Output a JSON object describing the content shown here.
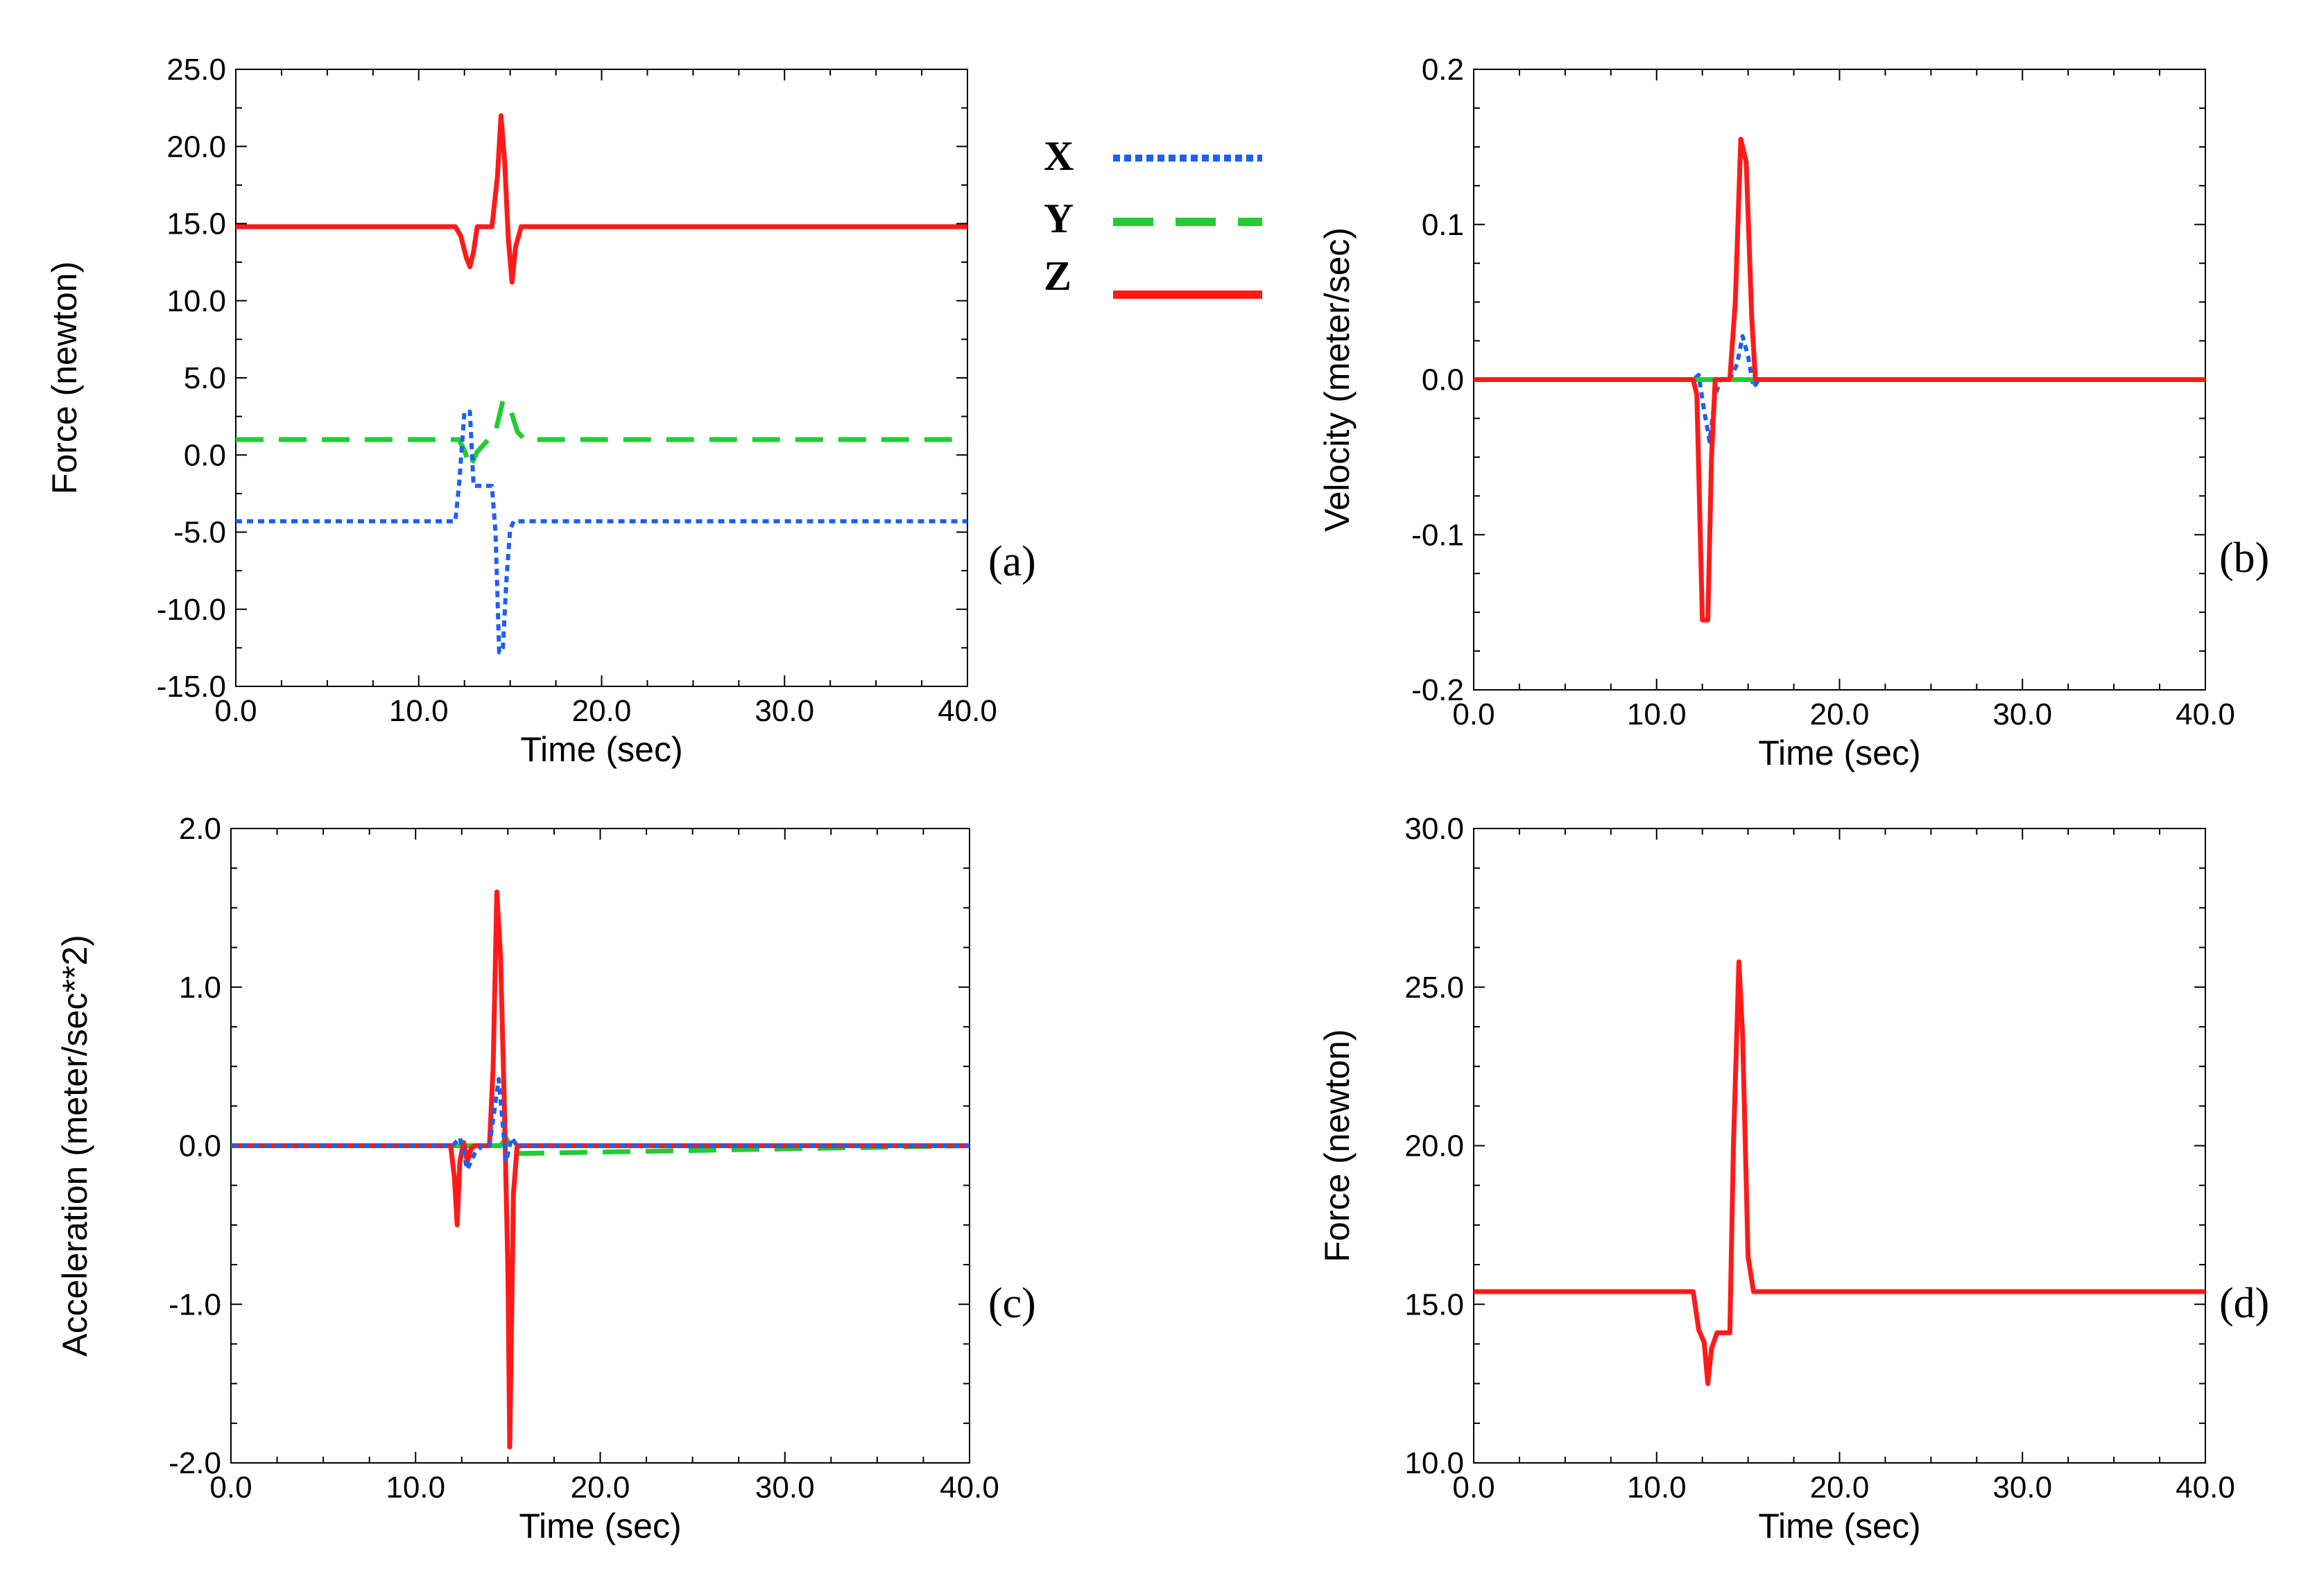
{
  "legend": {
    "entries": [
      {
        "label": "X",
        "color": "#1f5ff2",
        "dash": "dotted"
      },
      {
        "label": "Y",
        "color": "#22cc33",
        "dash": "dashed"
      },
      {
        "label": "Z",
        "color": "#ff1a1a",
        "dash": "solid"
      }
    ]
  },
  "chart_data": [
    {
      "id": "a",
      "panel_label": "(a)",
      "type": "line",
      "xlabel": "Time (sec)",
      "ylabel": "Force (newton)",
      "xlim": [
        0,
        40
      ],
      "ylim": [
        -15,
        25
      ],
      "xticks": [
        0,
        10,
        20,
        30,
        40
      ],
      "xtick_labels": [
        "0.0",
        "10.0",
        "20.0",
        "30.0",
        "40.0"
      ],
      "yticks": [
        -15,
        -10,
        -5,
        0,
        5,
        10,
        15,
        20,
        25
      ],
      "ytick_labels": [
        "-15.0",
        "-10.0",
        "-5.0",
        "0.0",
        "5.0",
        "10.0",
        "15.0",
        "20.0",
        "25.0"
      ],
      "series": [
        {
          "name": "Z",
          "color": "#ff1a1a",
          "dash": "solid",
          "x": [
            0,
            12,
            12.3,
            12.6,
            12.8,
            13.0,
            13.2,
            14.0,
            14.3,
            14.5,
            14.7,
            14.9,
            15.1,
            15.3,
            15.6,
            40
          ],
          "y": [
            14.8,
            14.8,
            14.2,
            12.8,
            12.2,
            13.2,
            14.8,
            14.8,
            18.0,
            22.0,
            19.0,
            14.0,
            11.2,
            13.5,
            14.8,
            14.8
          ]
        },
        {
          "name": "Y",
          "color": "#22cc33",
          "dash": "dashed",
          "x": [
            0,
            12.2,
            12.5,
            12.8,
            13.2,
            13.8,
            14.2,
            14.6,
            15.0,
            15.4,
            15.8,
            40
          ],
          "y": [
            1.0,
            1.0,
            0.3,
            -0.8,
            0.2,
            1.0,
            1.5,
            3.5,
            3.0,
            1.5,
            1.0,
            1.0
          ]
        },
        {
          "name": "X",
          "color": "#1f5ff2",
          "dash": "dotted",
          "x": [
            0,
            12.0,
            12.2,
            12.5,
            12.8,
            13.0,
            13.2,
            14.0,
            14.2,
            14.4,
            14.6,
            14.8,
            15.0,
            15.2,
            15.5,
            40
          ],
          "y": [
            -4.3,
            -4.3,
            -2.0,
            2.8,
            2.8,
            -2.0,
            -2.0,
            -2.0,
            -5.0,
            -12.8,
            -12.5,
            -8.0,
            -4.8,
            -4.3,
            -4.3,
            -4.3
          ]
        }
      ]
    },
    {
      "id": "b",
      "panel_label": "(b)",
      "type": "line",
      "xlabel": "Time (sec)",
      "ylabel": "Velocity (meter/sec)",
      "xlim": [
        0,
        40
      ],
      "ylim": [
        -0.2,
        0.2
      ],
      "xticks": [
        0,
        10,
        20,
        30,
        40
      ],
      "xtick_labels": [
        "0.0",
        "10.0",
        "20.0",
        "30.0",
        "40.0"
      ],
      "yticks": [
        -0.2,
        -0.1,
        0,
        0.1,
        0.2
      ],
      "ytick_labels": [
        "-0.2",
        "-0.1",
        "0.0",
        "0.1",
        "0.2"
      ],
      "series": [
        {
          "name": "X",
          "color": "#1f5ff2",
          "dash": "dotted",
          "x": [
            0,
            12.0,
            12.3,
            12.6,
            12.9,
            13.2,
            13.5,
            14.0,
            14.4,
            14.7,
            15.0,
            15.3,
            15.6,
            40
          ],
          "y": [
            0,
            0,
            0.003,
            -0.02,
            -0.04,
            -0.01,
            0,
            0,
            0.01,
            0.028,
            0.015,
            -0.005,
            0,
            0
          ]
        },
        {
          "name": "Y",
          "color": "#22cc33",
          "dash": "dashed",
          "x": [
            0,
            40
          ],
          "y": [
            0,
            0
          ]
        },
        {
          "name": "Z",
          "color": "#ff1a1a",
          "dash": "solid",
          "x": [
            0,
            12.0,
            12.2,
            12.5,
            12.8,
            13.0,
            13.2,
            14.0,
            14.3,
            14.6,
            14.9,
            15.2,
            15.4,
            40
          ],
          "y": [
            0,
            0,
            -0.01,
            -0.155,
            -0.155,
            -0.05,
            0,
            0,
            0.05,
            0.155,
            0.14,
            0.04,
            0,
            0
          ]
        }
      ]
    },
    {
      "id": "c",
      "panel_label": "(c)",
      "type": "line",
      "xlabel": "Time (sec)",
      "ylabel": "Acceleration (meter/sec**2)",
      "xlim": [
        0,
        40
      ],
      "ylim": [
        -2,
        2
      ],
      "xticks": [
        0,
        10,
        20,
        30,
        40
      ],
      "xtick_labels": [
        "0.0",
        "10.0",
        "20.0",
        "30.0",
        "40.0"
      ],
      "yticks": [
        -2,
        -1,
        0,
        1,
        2
      ],
      "ytick_labels": [
        "-2.0",
        "-1.0",
        "0.0",
        "1.0",
        "2.0"
      ],
      "series": [
        {
          "name": "Y",
          "color": "#22cc33",
          "dash": "dashed",
          "x": [
            0,
            14.6,
            14.9,
            15.2,
            40
          ],
          "y": [
            0,
            0,
            0.05,
            -0.05,
            0
          ]
        },
        {
          "name": "Z",
          "color": "#ff1a1a",
          "dash": "solid",
          "x": [
            0,
            11.9,
            12.1,
            12.25,
            12.4,
            12.6,
            12.8,
            13.0,
            13.2,
            14.0,
            14.2,
            14.4,
            14.6,
            14.8,
            15.0,
            15.1,
            15.3,
            15.5,
            40
          ],
          "y": [
            0,
            0,
            -0.2,
            -0.5,
            -0.1,
            0.02,
            -0.1,
            -0.02,
            0,
            0,
            0.5,
            1.6,
            1.2,
            0.3,
            -0.8,
            -1.9,
            -0.3,
            0,
            0
          ]
        },
        {
          "name": "X",
          "color": "#1f5ff2",
          "dash": "dotted",
          "x": [
            0,
            12.0,
            12.4,
            12.8,
            13.2,
            13.6,
            14.0,
            14.5,
            14.9,
            15.2,
            15.5,
            40
          ],
          "y": [
            0,
            0,
            0.05,
            -0.15,
            -0.05,
            0,
            0,
            0.42,
            -0.1,
            0.05,
            0,
            0
          ]
        }
      ]
    },
    {
      "id": "d",
      "panel_label": "(d)",
      "type": "line",
      "xlabel": "Time (sec)",
      "ylabel": "Force (newton)",
      "xlim": [
        0,
        40
      ],
      "ylim": [
        10,
        30
      ],
      "xticks": [
        0,
        10,
        20,
        30,
        40
      ],
      "xtick_labels": [
        "0.0",
        "10.0",
        "20.0",
        "30.0",
        "40.0"
      ],
      "yticks": [
        10,
        15,
        20,
        25,
        30
      ],
      "ytick_labels": [
        "10.0",
        "15.0",
        "20.0",
        "25.0",
        "30.0"
      ],
      "series": [
        {
          "name": "Z",
          "color": "#ff1a1a",
          "dash": "solid",
          "x": [
            0,
            12.0,
            12.3,
            12.6,
            12.8,
            13.0,
            13.3,
            14.0,
            14.2,
            14.5,
            14.7,
            15.0,
            15.3,
            40
          ],
          "y": [
            15.4,
            15.4,
            14.2,
            13.8,
            12.5,
            13.6,
            14.1,
            14.1,
            20.0,
            25.8,
            23.5,
            16.5,
            15.4,
            15.4
          ]
        }
      ]
    }
  ]
}
